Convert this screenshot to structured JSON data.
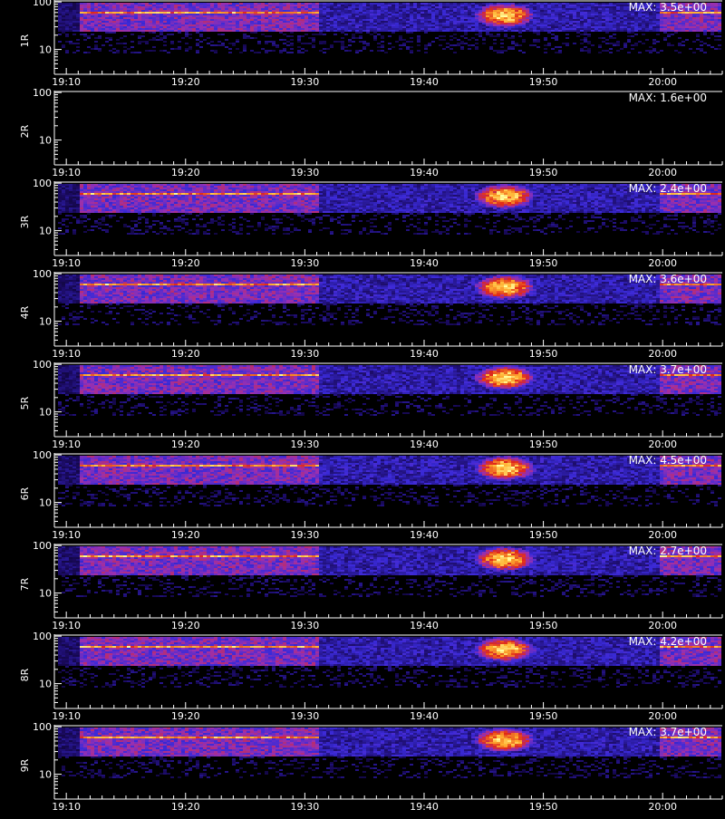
{
  "chart_data": [
    {
      "type": "heatmap",
      "panel_label": "1R",
      "max_label": "MAX: 3.5e+00",
      "max_value": 3.5
    },
    {
      "type": "heatmap",
      "panel_label": "2R",
      "max_label": "MAX: 1.6e+00",
      "max_value": 1.6
    },
    {
      "type": "heatmap",
      "panel_label": "3R",
      "max_label": "MAX: 2.4e+00",
      "max_value": 2.4
    },
    {
      "type": "heatmap",
      "panel_label": "4R",
      "max_label": "MAX: 3.6e+00",
      "max_value": 3.6
    },
    {
      "type": "heatmap",
      "panel_label": "5R",
      "max_label": "MAX: 3.7e+00",
      "max_value": 3.7
    },
    {
      "type": "heatmap",
      "panel_label": "6R",
      "max_label": "MAX: 4.5e+00",
      "max_value": 4.5
    },
    {
      "type": "heatmap",
      "panel_label": "7R",
      "max_label": "MAX: 2.7e+00",
      "max_value": 2.7
    },
    {
      "type": "heatmap",
      "panel_label": "8R",
      "max_label": "MAX: 4.2e+00",
      "max_value": 4.2
    },
    {
      "type": "heatmap",
      "panel_label": "9R",
      "max_label": "MAX: 3.7e+00",
      "max_value": 3.7
    }
  ],
  "axes": {
    "x_ticks": [
      "19:10",
      "19:20",
      "19:30",
      "19:40",
      "19:50",
      "20:00"
    ],
    "x_tick_minutes": [
      1150,
      1160,
      1170,
      1180,
      1190,
      1200
    ],
    "x_range_minutes": [
      1149,
      1205
    ],
    "y_ticks": [
      "100",
      "10"
    ],
    "y_tick_values": [
      100,
      10
    ],
    "y_range": [
      3,
      110
    ],
    "y_scale": "log"
  },
  "colors": {
    "background": "#000000",
    "axis": "#ffffff",
    "colormap": [
      "#000000",
      "#1a0a60",
      "#3a2ad8",
      "#9a30b0",
      "#e02818",
      "#ffb030",
      "#ffffa0"
    ]
  },
  "footer_text": ""
}
